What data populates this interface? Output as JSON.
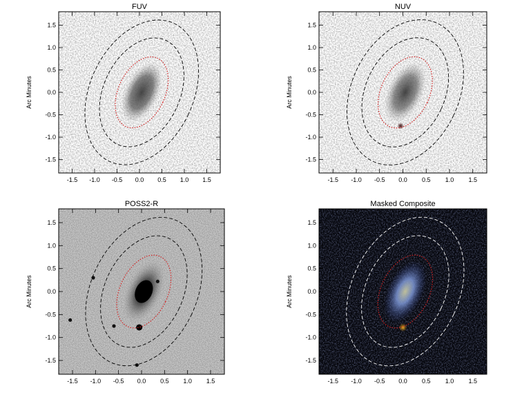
{
  "panels": [
    {
      "id": "fuv",
      "title": "FUV",
      "ylabel": "Arc Minutes",
      "theme": "light",
      "source_color": "#3a3a3a",
      "noise": "#9a9a9a"
    },
    {
      "id": "nuv",
      "title": "NUV",
      "ylabel": "Arc Minutes",
      "theme": "light",
      "source_color": "#3a3a3a",
      "noise": "#a8a8a8"
    },
    {
      "id": "poss2r",
      "title": "POSS2-R",
      "ylabel": "Arc Minutes",
      "theme": "grey",
      "source_color": "#0a0a0a",
      "noise": "#8c8c8c"
    },
    {
      "id": "composite",
      "title": "Masked Composite",
      "ylabel": "Arc Minutes",
      "theme": "dark",
      "source_color": "#8aa0e0",
      "noise": "#1a2040"
    }
  ],
  "axes": {
    "xlim": [
      -1.8,
      1.8
    ],
    "ylim": [
      -1.8,
      1.8
    ],
    "x_ticks": [
      "-1.5",
      "-1.0",
      "-0.5",
      "0.0",
      "0.5",
      "1.0",
      "1.5"
    ],
    "y_ticks": [
      "1.5",
      "1.0",
      "0.5",
      "0.0",
      "-0.5",
      "-1.0",
      "-1.5"
    ],
    "x_tick_values": [
      -1.5,
      -1.0,
      -0.5,
      0.0,
      0.5,
      1.0,
      1.5
    ],
    "y_tick_values": [
      1.5,
      1.0,
      0.5,
      0.0,
      -0.5,
      -1.0,
      -1.5
    ]
  },
  "apertures": {
    "inner_ellipse_color": "#d42020",
    "outer_ellipse_color_light": "#000000",
    "outer_ellipse_color_dark": "#ffffff"
  }
}
